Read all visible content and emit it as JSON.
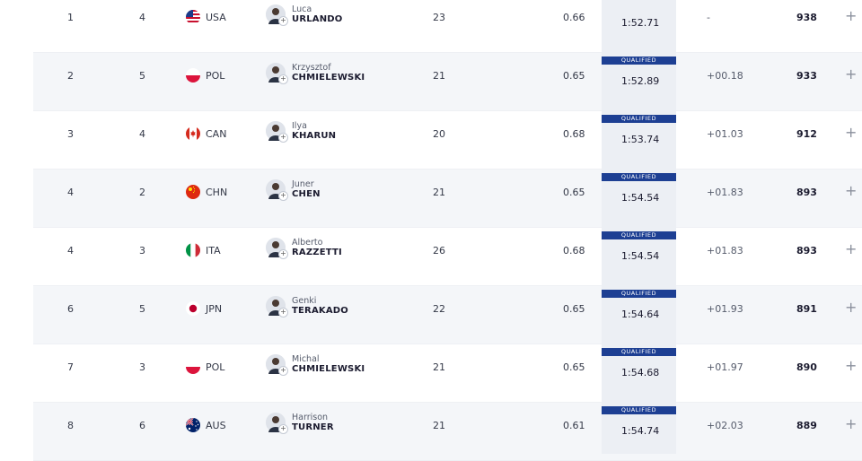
{
  "qualified_label": "QUALIFIED",
  "colors": {
    "accent": "#1d3f93",
    "row_alt": "#f4f6f9",
    "time_col": "#eceff4"
  },
  "rows": [
    {
      "rank": "1",
      "lane": "4",
      "country": "USA",
      "flag": "usa-flag-icon",
      "first": "Luca",
      "last": "URLANDO",
      "age": "23",
      "rt": "0.66",
      "time": "1:52.71",
      "behind": "-",
      "points": "938",
      "qualified": false
    },
    {
      "rank": "2",
      "lane": "5",
      "country": "POL",
      "flag": "pol-flag-icon",
      "first": "Krzysztof",
      "last": "CHMIELEWSKI",
      "age": "21",
      "rt": "0.65",
      "time": "1:52.89",
      "behind": "+00.18",
      "points": "933",
      "qualified": true
    },
    {
      "rank": "3",
      "lane": "4",
      "country": "CAN",
      "flag": "can-flag-icon",
      "first": "Ilya",
      "last": "KHARUN",
      "age": "20",
      "rt": "0.68",
      "time": "1:53.74",
      "behind": "+01.03",
      "points": "912",
      "qualified": true
    },
    {
      "rank": "4",
      "lane": "2",
      "country": "CHN",
      "flag": "chn-flag-icon",
      "first": "Juner",
      "last": "CHEN",
      "age": "21",
      "rt": "0.65",
      "time": "1:54.54",
      "behind": "+01.83",
      "points": "893",
      "qualified": true
    },
    {
      "rank": "4",
      "lane": "3",
      "country": "ITA",
      "flag": "ita-flag-icon",
      "first": "Alberto",
      "last": "RAZZETTI",
      "age": "26",
      "rt": "0.68",
      "time": "1:54.54",
      "behind": "+01.83",
      "points": "893",
      "qualified": true
    },
    {
      "rank": "6",
      "lane": "5",
      "country": "JPN",
      "flag": "jpn-flag-icon",
      "first": "Genki",
      "last": "TERAKADO",
      "age": "22",
      "rt": "0.65",
      "time": "1:54.64",
      "behind": "+01.93",
      "points": "891",
      "qualified": true
    },
    {
      "rank": "7",
      "lane": "3",
      "country": "POL",
      "flag": "pol-flag-icon",
      "first": "Michal",
      "last": "CHMIELEWSKI",
      "age": "21",
      "rt": "0.65",
      "time": "1:54.68",
      "behind": "+01.97",
      "points": "890",
      "qualified": true
    },
    {
      "rank": "8",
      "lane": "6",
      "country": "AUS",
      "flag": "aus-flag-icon",
      "first": "Harrison",
      "last": "TURNER",
      "age": "21",
      "rt": "0.61",
      "time": "1:54.74",
      "behind": "+02.03",
      "points": "889",
      "qualified": true
    }
  ]
}
